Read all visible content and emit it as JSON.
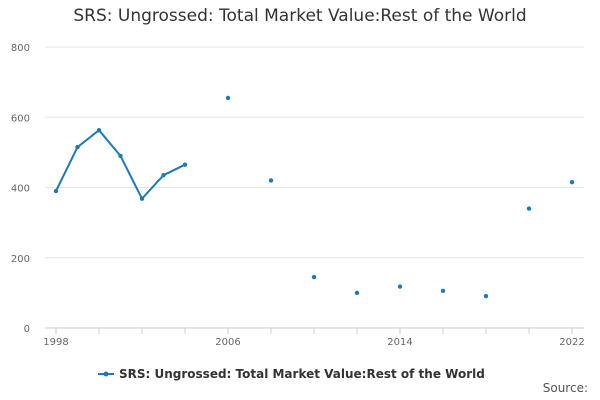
{
  "chart_data": {
    "type": "line",
    "title": "SRS: Ungrossed: Total Market Value:Rest of the World",
    "xlabel": "",
    "ylabel": "",
    "xlim": [
      1998,
      2022
    ],
    "ylim": [
      0,
      800
    ],
    "x_ticks": [
      1998,
      2006,
      2014,
      2022
    ],
    "y_ticks": [
      0,
      200,
      400,
      600,
      800
    ],
    "grid": true,
    "legend_position": "bottom",
    "series": [
      {
        "name": "SRS: Ungrossed: Total Market Value:Rest of the World",
        "color": "#1f7ab3",
        "points": [
          [
            1998,
            390
          ],
          [
            1999,
            515
          ],
          [
            2000,
            563
          ],
          [
            2001,
            490
          ],
          [
            2002,
            368
          ],
          [
            2003,
            435
          ],
          [
            2004,
            465
          ],
          [
            2006,
            655
          ],
          [
            2008,
            420
          ],
          [
            2010,
            145
          ],
          [
            2012,
            100
          ],
          [
            2014,
            118
          ],
          [
            2016,
            106
          ],
          [
            2018,
            91
          ],
          [
            2020,
            340
          ],
          [
            2022,
            415
          ]
        ]
      }
    ]
  },
  "source_label": "Source:"
}
